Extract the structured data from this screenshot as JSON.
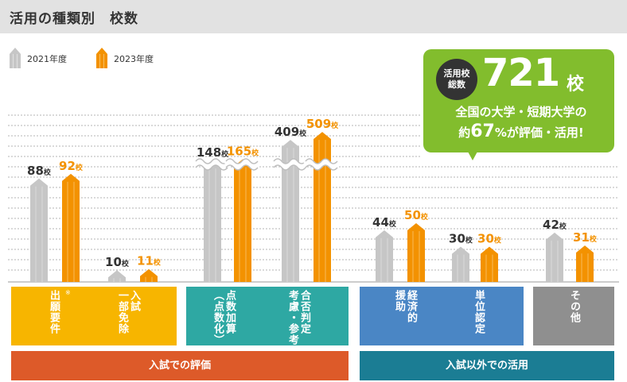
{
  "title": "活用の種類別　校数",
  "legend": [
    {
      "label": "2021年度",
      "color": "#c6c6c6"
    },
    {
      "label": "2023年度",
      "color": "#f39200"
    }
  ],
  "callout": {
    "badge_line1": "活用校",
    "badge_line2": "総数",
    "number": "721",
    "unit": "校",
    "line1": "全国の大学・短期大学の",
    "line2_prefix": "約",
    "line2_number": "67",
    "line2_suffix": "%が評価・活用!"
  },
  "colors": {
    "c2021": "#c6c6c6",
    "c2023": "#f39200",
    "value2023_text": "#f39200",
    "value2021_text": "#333333",
    "cat_orange": "#f7b500",
    "cat_teal": "#2ea8a3",
    "cat_blue": "#4a86c5",
    "cat_gray": "#8f8f8f",
    "group_orange": "#dd5a29",
    "group_teal": "#1b7d94",
    "callout_green": "#82bd2d"
  },
  "chart_data": {
    "type": "bar",
    "categories": [
      "出願要件",
      "一部免除入試",
      "点数加算（点数化）",
      "合否判定考慮・参考",
      "経済的援助",
      "単位認定",
      "その他"
    ],
    "series": [
      {
        "name": "2021年度",
        "values": [
          88,
          10,
          148,
          409,
          44,
          30,
          42
        ],
        "labels": [
          "88校",
          "10校",
          "148校",
          "409校",
          "44校",
          "30校",
          "42校"
        ]
      },
      {
        "name": "2023年度",
        "values": [
          92,
          11,
          165,
          509,
          50,
          30,
          31
        ],
        "labels": [
          "92校",
          "11校",
          "165校",
          "509校",
          "50校",
          "30校",
          "31校"
        ]
      }
    ],
    "axis_break": true,
    "grid": true,
    "unit": "校"
  },
  "categories_display": [
    {
      "lines": [
        "出願",
        "要件"
      ],
      "note": "※",
      "color_key": "cat_orange"
    },
    {
      "lines": [
        "一部",
        "入試",
        "免除"
      ],
      "color_key": "cat_orange"
    },
    {
      "lines": [
        "点数",
        "（点数化）",
        "加算"
      ],
      "color_key": "cat_teal"
    },
    {
      "lines": [
        "合否",
        "考慮・参考",
        "判定"
      ],
      "color_key": "cat_teal"
    },
    {
      "lines": [
        "経済",
        "援助",
        "的"
      ],
      "color_key": "cat_blue"
    },
    {
      "lines": [
        "単位",
        "認定"
      ],
      "color_key": "cat_blue"
    },
    {
      "lines": [
        "その他"
      ],
      "color_key": "cat_gray"
    }
  ],
  "groups": [
    {
      "label": "入試での評価",
      "color_key": "group_orange"
    },
    {
      "label": "入試以外での活用",
      "color_key": "group_teal"
    }
  ]
}
